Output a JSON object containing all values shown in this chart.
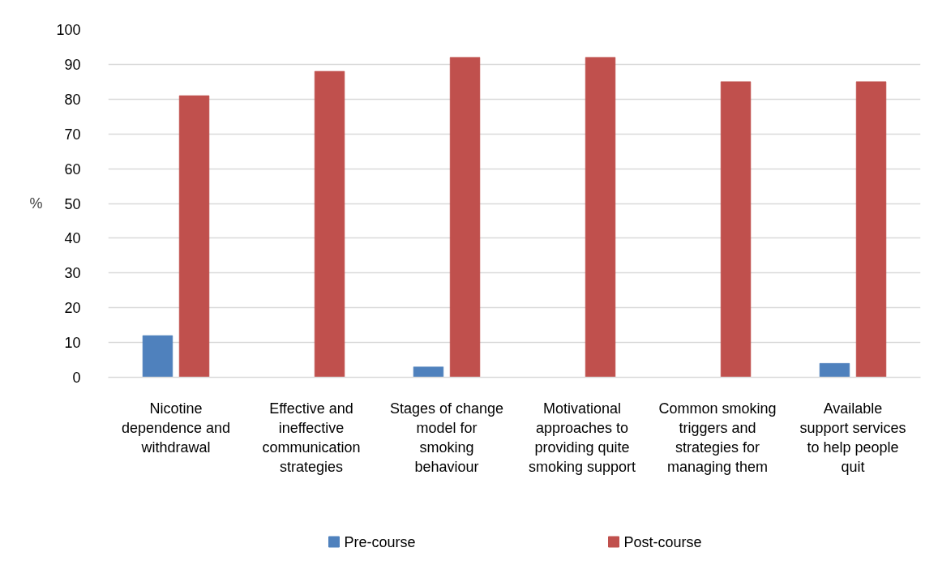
{
  "chart_data": {
    "type": "bar",
    "ylabel": "%",
    "categories": [
      "Nicotine dependence and withdrawal",
      "Effective and ineffective communication strategies",
      "Stages of change model for smoking behaviour",
      "Motivational approaches to providing quite smoking support",
      "Common smoking triggers and strategies for managing them",
      "Available support services to help people quit"
    ],
    "series": [
      {
        "name": "Pre-course",
        "color": "#4f81bd",
        "values": [
          12,
          0,
          3,
          0,
          0,
          4
        ]
      },
      {
        "name": "Post-course",
        "color": "#c0504d",
        "values": [
          81,
          88,
          92,
          92,
          85,
          85
        ]
      }
    ],
    "ylim": [
      0,
      100
    ],
    "yticks": [
      0,
      10,
      20,
      30,
      40,
      50,
      60,
      70,
      80,
      90,
      100
    ],
    "grid": "y",
    "legend": "bottom"
  }
}
